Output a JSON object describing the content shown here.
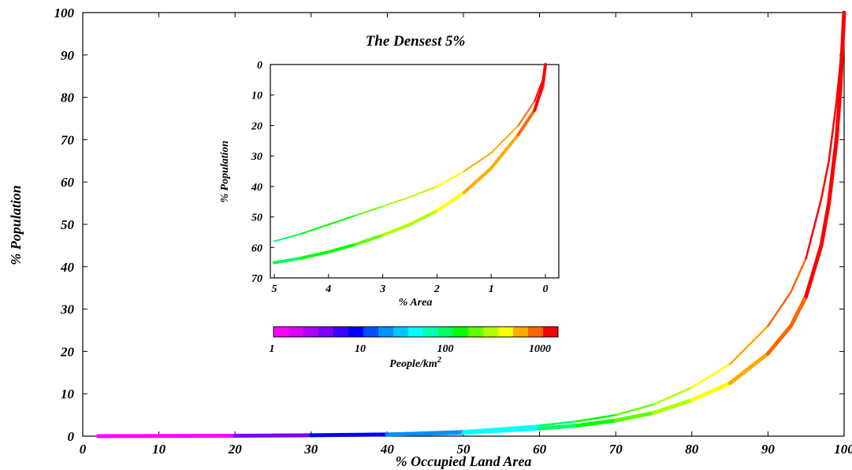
{
  "chart_data": [
    {
      "type": "line",
      "xlabel": "% Occupied Land Area",
      "ylabel": "% Population",
      "xlim": [
        0,
        100
      ],
      "ylim": [
        0,
        100
      ],
      "xticks": [
        0,
        10,
        20,
        30,
        40,
        50,
        60,
        70,
        80,
        90,
        100
      ],
      "yticks": [
        0,
        10,
        20,
        30,
        40,
        50,
        60,
        70,
        80,
        90,
        100
      ],
      "color_encoding": "People/km²",
      "series": [
        {
          "x": [
            2,
            20,
            30,
            40,
            50,
            60,
            65,
            70,
            75,
            80,
            85,
            90,
            93,
            95,
            97,
            98,
            99,
            99.5,
            100
          ],
          "y": [
            0,
            0.2,
            0.3,
            0.6,
            1.2,
            2.5,
            3.5,
            5,
            7.5,
            11.5,
            17,
            26,
            34,
            42,
            56,
            65,
            79,
            88,
            100
          ]
        },
        {
          "x": [
            2,
            20,
            30,
            40,
            50,
            60,
            65,
            70,
            75,
            80,
            85,
            90,
            93,
            95,
            97,
            98,
            99,
            99.5,
            100
          ],
          "y": [
            0,
            0.1,
            0.2,
            0.4,
            0.8,
            1.8,
            2.5,
            3.7,
            5.5,
            8.5,
            12.5,
            19.5,
            26,
            33,
            45,
            55,
            70,
            82,
            100
          ]
        }
      ]
    },
    {
      "type": "line",
      "title": "The Densest 5%",
      "xlabel": "% Area",
      "ylabel": "% Population",
      "xlim": [
        5,
        0
      ],
      "ylim": [
        70,
        0
      ],
      "xticks": [
        5,
        4,
        3,
        2,
        1,
        0
      ],
      "yticks": [
        0,
        10,
        20,
        30,
        40,
        50,
        60,
        70
      ],
      "series": [
        {
          "x": [
            5,
            4.5,
            4,
            3.5,
            3,
            2.5,
            2,
            1.5,
            1,
            0.5,
            0.2,
            0.05,
            0
          ],
          "y": [
            58,
            55.5,
            52.5,
            49.5,
            46.5,
            43.5,
            40,
            35,
            29,
            20,
            12,
            5,
            0
          ]
        },
        {
          "x": [
            5,
            4.5,
            4,
            3.5,
            3,
            2.5,
            2,
            1.5,
            1,
            0.5,
            0.2,
            0.05,
            0
          ],
          "y": [
            65,
            63.5,
            61.5,
            59,
            56,
            52.5,
            48,
            42,
            34,
            23,
            15,
            7,
            0
          ]
        }
      ]
    }
  ],
  "colorbar": {
    "label_base": "People/km",
    "label_exp": "2",
    "ticks": [
      "1",
      "10",
      "100",
      "1000"
    ],
    "colors": [
      "#ff00ff",
      "#dd00ff",
      "#b000ff",
      "#7a00ff",
      "#3b00ff",
      "#0000ff",
      "#0050ff",
      "#0090ff",
      "#00c8ff",
      "#00ffff",
      "#00ffb0",
      "#00ff60",
      "#00ff00",
      "#60ff00",
      "#b0ff00",
      "#ffff00",
      "#ffaa00",
      "#ff6600",
      "#ff0000"
    ]
  }
}
